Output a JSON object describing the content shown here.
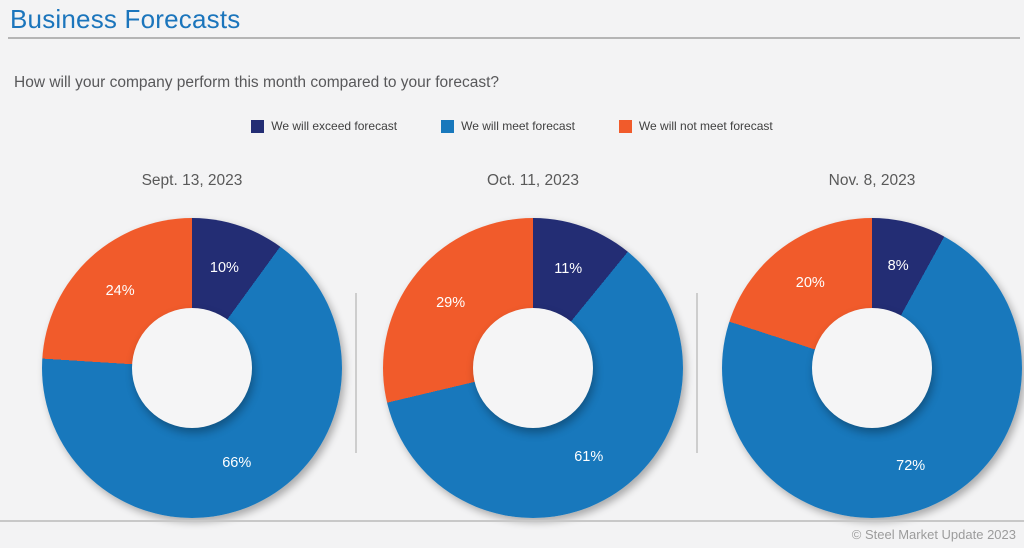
{
  "page": {
    "title": "Business Forecasts",
    "question": "How will your company perform this month compared to your forecast?",
    "copyright": "© Steel Market Update 2023"
  },
  "colors": {
    "title_accent": "#1b75bc",
    "exceed": "#232d74",
    "meet": "#1878bc",
    "not_meet": "#f15b2b",
    "background": "#f3f3f4"
  },
  "legend": [
    {
      "label": "We will exceed forecast",
      "color": "#232d74"
    },
    {
      "label": "We will meet forecast",
      "color": "#1878bc"
    },
    {
      "label": "We will not meet forecast",
      "color": "#f15b2b"
    }
  ],
  "chart_data": [
    {
      "type": "pie",
      "title": "Sept. 13, 2023",
      "categories": [
        "We will exceed forecast",
        "We will meet forecast",
        "We will not meet forecast"
      ],
      "values": [
        10,
        66,
        24
      ],
      "labels": [
        "10%",
        "66%",
        "24%"
      ],
      "donut_hole": 0.4,
      "start_angle_deg": 0,
      "direction": "clockwise",
      "legend_position": "top"
    },
    {
      "type": "pie",
      "title": "Oct. 11, 2023",
      "categories": [
        "We will exceed forecast",
        "We will meet forecast",
        "We will not meet forecast"
      ],
      "values": [
        11,
        61,
        29
      ],
      "labels": [
        "11%",
        "61%",
        "29%"
      ],
      "donut_hole": 0.4,
      "start_angle_deg": 0,
      "direction": "clockwise",
      "legend_position": "top"
    },
    {
      "type": "pie",
      "title": "Nov. 8, 2023",
      "categories": [
        "We will exceed forecast",
        "We will meet forecast",
        "We will not meet forecast"
      ],
      "values": [
        8,
        72,
        20
      ],
      "labels": [
        "8%",
        "72%",
        "20%"
      ],
      "donut_hole": 0.4,
      "start_angle_deg": 0,
      "direction": "clockwise",
      "legend_position": "top"
    }
  ]
}
